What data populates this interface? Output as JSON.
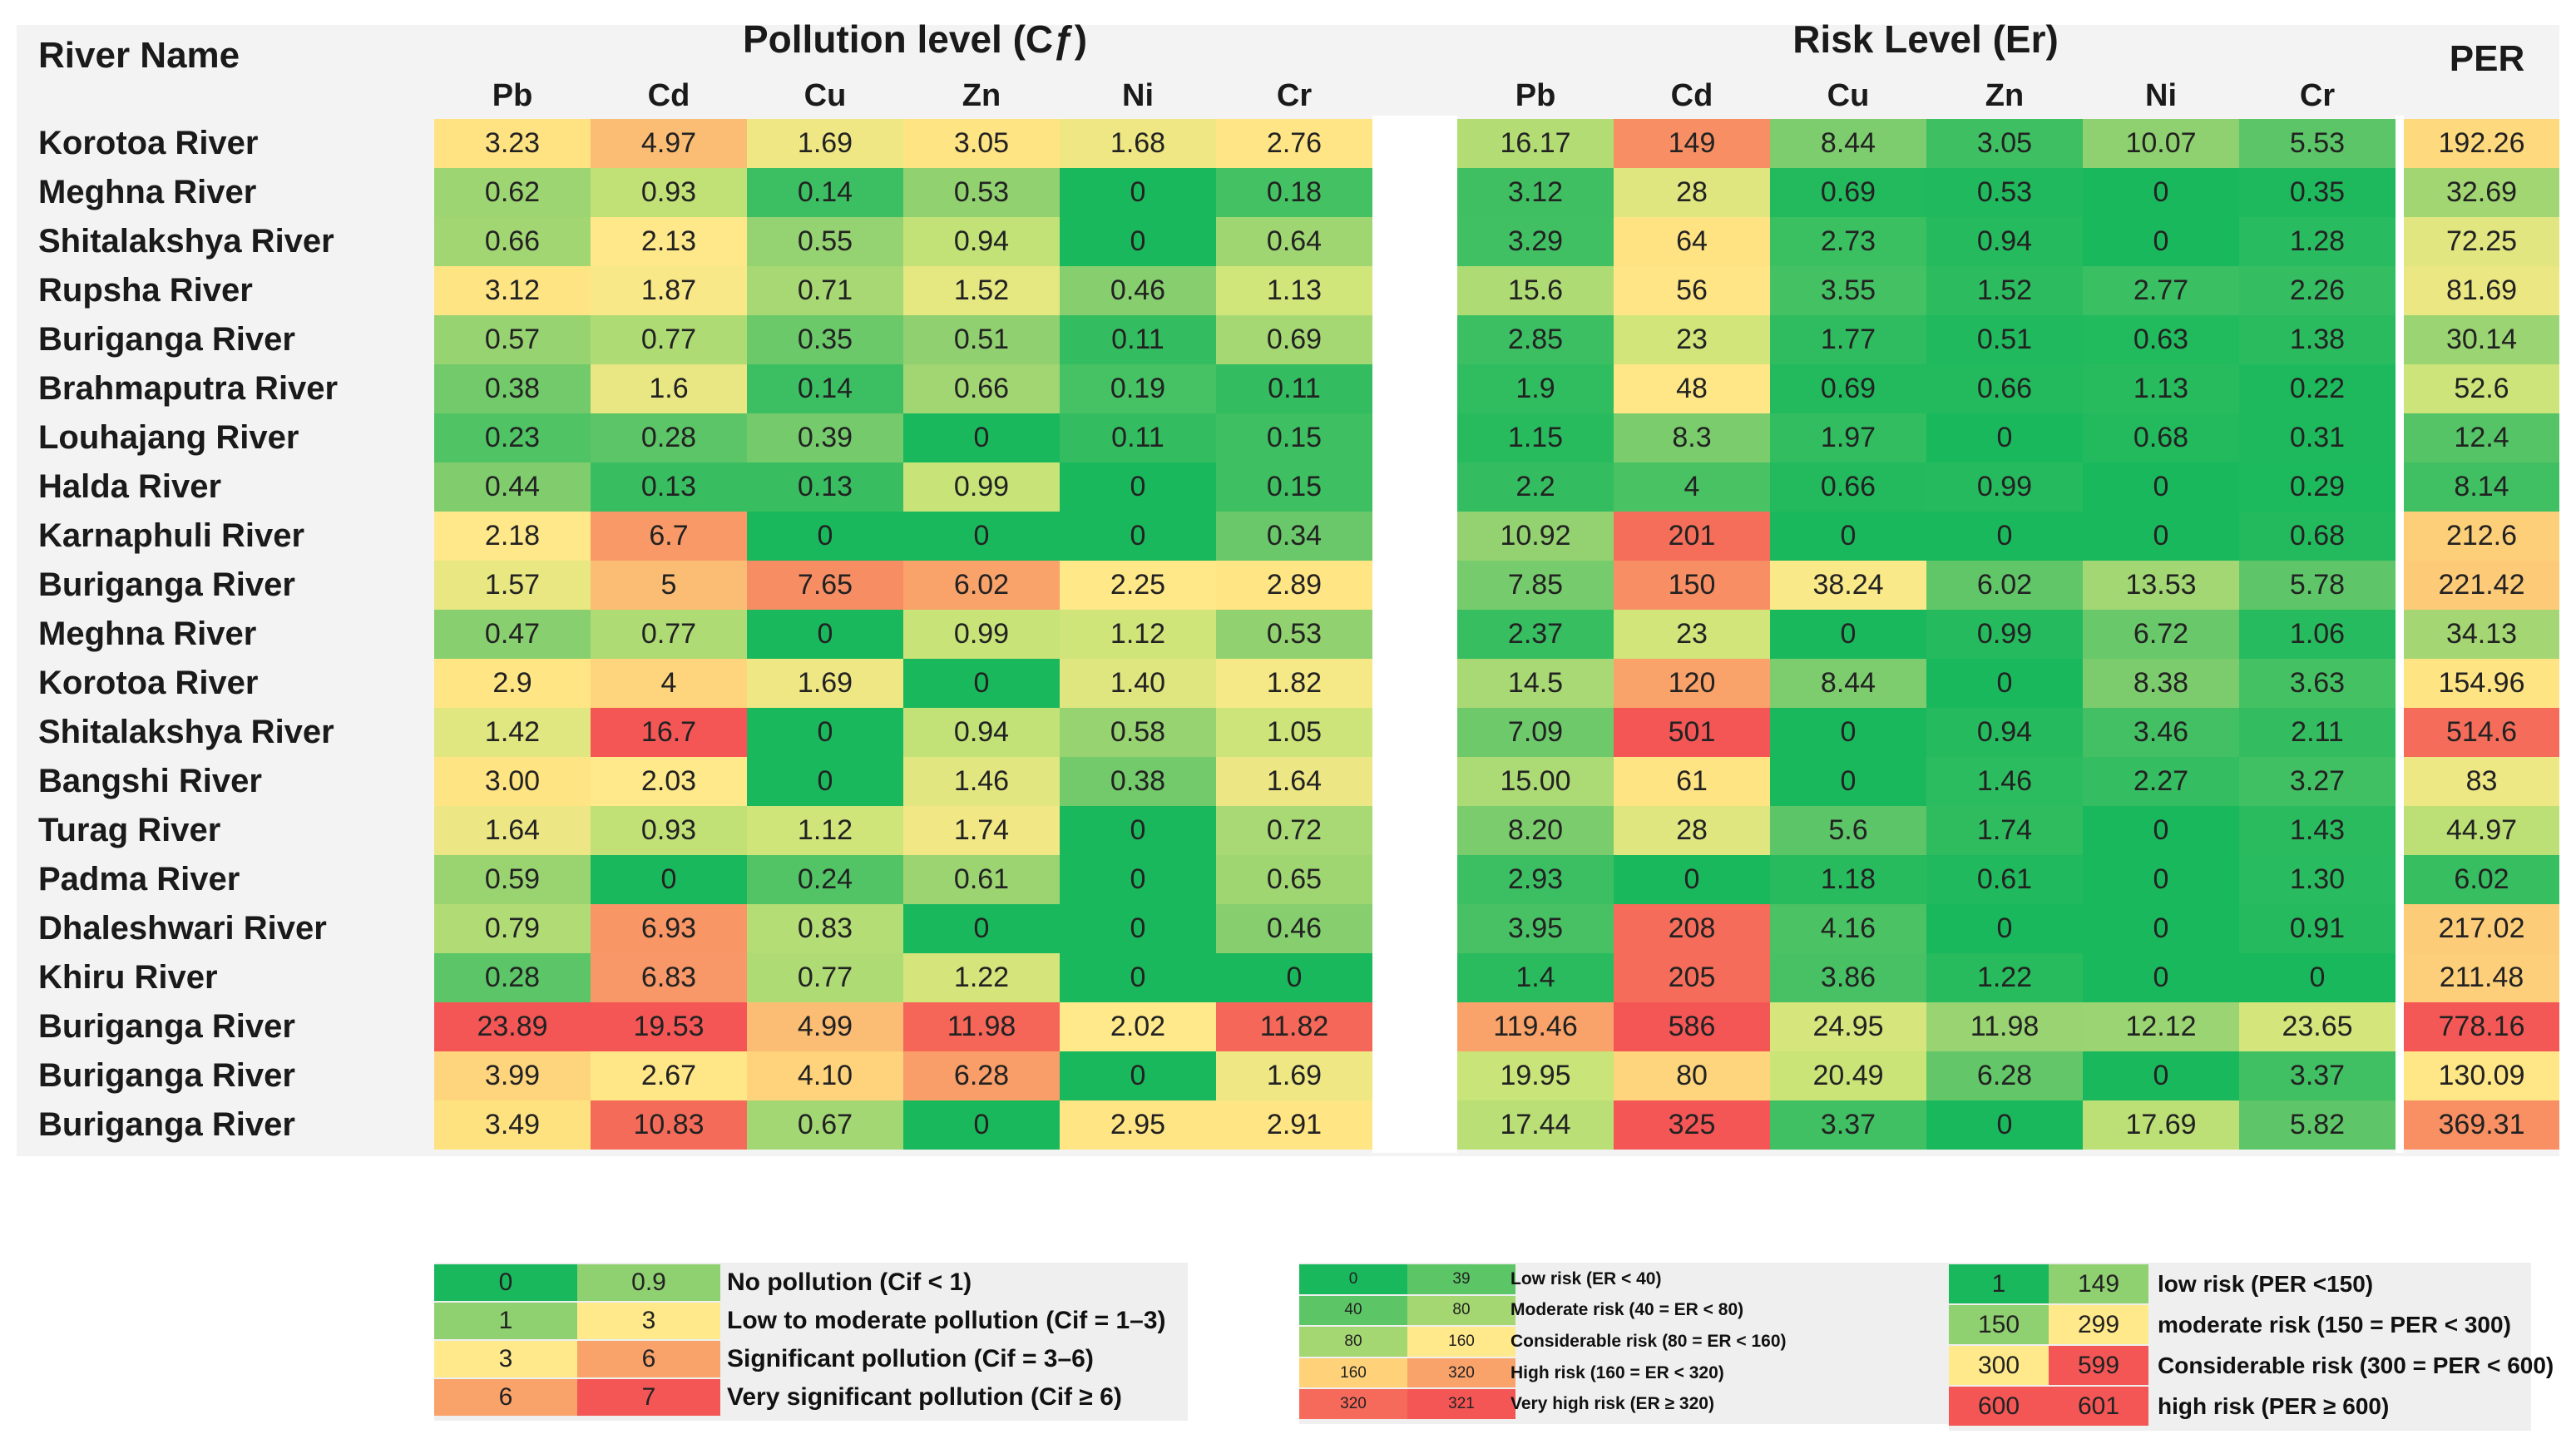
{
  "chart_data": {
    "type": "table",
    "title": "",
    "row_header": "River Name",
    "groups": [
      {
        "name": "Pollution level (Cƒ)",
        "columns": [
          "Pb",
          "Cd",
          "Cu",
          "Zn",
          "Ni",
          "Cr"
        ]
      },
      {
        "name": "Risk Level (Er)",
        "columns": [
          "Pb",
          "Cd",
          "Cu",
          "Zn",
          "Ni",
          "Cr"
        ]
      },
      {
        "name": "PER",
        "columns": [
          "PER"
        ]
      }
    ],
    "rows": [
      {
        "river": "Korotoa River",
        "cf": [
          "3.23",
          "4.97",
          "1.69",
          "3.05",
          "1.68",
          "2.76"
        ],
        "er": [
          "16.17",
          "149",
          "8.44",
          "3.05",
          "10.07",
          "5.53"
        ],
        "per": "192.26"
      },
      {
        "river": "Meghna River",
        "cf": [
          "0.62",
          "0.93",
          "0.14",
          "0.53",
          "0",
          "0.18"
        ],
        "er": [
          "3.12",
          "28",
          "0.69",
          "0.53",
          "0",
          "0.35"
        ],
        "per": "32.69"
      },
      {
        "river": "Shitalakshya River",
        "cf": [
          "0.66",
          "2.13",
          "0.55",
          "0.94",
          "0",
          "0.64"
        ],
        "er": [
          "3.29",
          "64",
          "2.73",
          "0.94",
          "0",
          "1.28"
        ],
        "per": "72.25"
      },
      {
        "river": "Rupsha River",
        "cf": [
          "3.12",
          "1.87",
          "0.71",
          "1.52",
          "0.46",
          "1.13"
        ],
        "er": [
          "15.6",
          "56",
          "3.55",
          "1.52",
          "2.77",
          "2.26"
        ],
        "per": "81.69"
      },
      {
        "river": "Buriganga River",
        "cf": [
          "0.57",
          "0.77",
          "0.35",
          "0.51",
          "0.11",
          "0.69"
        ],
        "er": [
          "2.85",
          "23",
          "1.77",
          "0.51",
          "0.63",
          "1.38"
        ],
        "per": "30.14"
      },
      {
        "river": "Brahmaputra River",
        "cf": [
          "0.38",
          "1.6",
          "0.14",
          "0.66",
          "0.19",
          "0.11"
        ],
        "er": [
          "1.9",
          "48",
          "0.69",
          "0.66",
          "1.13",
          "0.22"
        ],
        "per": "52.6"
      },
      {
        "river": "Louhajang River",
        "cf": [
          "0.23",
          "0.28",
          "0.39",
          "0",
          "0.11",
          "0.15"
        ],
        "er": [
          "1.15",
          "8.3",
          "1.97",
          "0",
          "0.68",
          "0.31"
        ],
        "per": "12.4"
      },
      {
        "river": "Halda River",
        "cf": [
          "0.44",
          "0.13",
          "0.13",
          "0.99",
          "0",
          "0.15"
        ],
        "er": [
          "2.2",
          "4",
          "0.66",
          "0.99",
          "0",
          "0.29"
        ],
        "per": "8.14"
      },
      {
        "river": "Karnaphuli River",
        "cf": [
          "2.18",
          "6.7",
          "0",
          "0",
          "0",
          "0.34"
        ],
        "er": [
          "10.92",
          "201",
          "0",
          "0",
          "0",
          "0.68"
        ],
        "per": "212.6"
      },
      {
        "river": "Buriganga River",
        "cf": [
          "1.57",
          "5",
          "7.65",
          "6.02",
          "2.25",
          "2.89"
        ],
        "er": [
          "7.85",
          "150",
          "38.24",
          "6.02",
          "13.53",
          "5.78"
        ],
        "per": "221.42"
      },
      {
        "river": "Meghna River",
        "cf": [
          "0.47",
          "0.77",
          "0",
          "0.99",
          "1.12",
          "0.53"
        ],
        "er": [
          "2.37",
          "23",
          "0",
          "0.99",
          "6.72",
          "1.06"
        ],
        "per": "34.13"
      },
      {
        "river": "Korotoa River",
        "cf": [
          "2.9",
          "4",
          "1.69",
          "0",
          "1.40",
          "1.82"
        ],
        "er": [
          "14.5",
          "120",
          "8.44",
          "0",
          "8.38",
          "3.63"
        ],
        "per": "154.96"
      },
      {
        "river": "Shitalakshya River",
        "cf": [
          "1.42",
          "16.7",
          "0",
          "0.94",
          "0.58",
          "1.05"
        ],
        "er": [
          "7.09",
          "501",
          "0",
          "0.94",
          "3.46",
          "2.11"
        ],
        "per": "514.6"
      },
      {
        "river": "Bangshi River",
        "cf": [
          "3.00",
          "2.03",
          "0",
          "1.46",
          "0.38",
          "1.64"
        ],
        "er": [
          "15.00",
          "61",
          "0",
          "1.46",
          "2.27",
          "3.27"
        ],
        "per": "83"
      },
      {
        "river": "Turag River",
        "cf": [
          "1.64",
          "0.93",
          "1.12",
          "1.74",
          "0",
          "0.72"
        ],
        "er": [
          "8.20",
          "28",
          "5.6",
          "1.74",
          "0",
          "1.43"
        ],
        "per": "44.97"
      },
      {
        "river": "Padma River",
        "cf": [
          "0.59",
          "0",
          "0.24",
          "0.61",
          "0",
          "0.65"
        ],
        "er": [
          "2.93",
          "0",
          "1.18",
          "0.61",
          "0",
          "1.30"
        ],
        "per": "6.02"
      },
      {
        "river": "Dhaleshwari River",
        "cf": [
          "0.79",
          "6.93",
          "0.83",
          "0",
          "0",
          "0.46"
        ],
        "er": [
          "3.95",
          "208",
          "4.16",
          "0",
          "0",
          "0.91"
        ],
        "per": "217.02"
      },
      {
        "river": "Khiru River",
        "cf": [
          "0.28",
          "6.83",
          "0.77",
          "1.22",
          "0",
          "0"
        ],
        "er": [
          "1.4",
          "205",
          "3.86",
          "1.22",
          "0",
          "0"
        ],
        "per": "211.48"
      },
      {
        "river": "Buriganga River",
        "cf": [
          "23.89",
          "19.53",
          "4.99",
          "11.98",
          "2.02",
          "11.82"
        ],
        "er": [
          "119.46",
          "586",
          "24.95",
          "11.98",
          "12.12",
          "23.65"
        ],
        "per": "778.16"
      },
      {
        "river": "Buriganga River",
        "cf": [
          "3.99",
          "2.67",
          "4.10",
          "6.28",
          "0",
          "1.69"
        ],
        "er": [
          "19.95",
          "80",
          "20.49",
          "6.28",
          "0",
          "3.37"
        ],
        "per": "130.09"
      },
      {
        "river": "Buriganga River",
        "cf": [
          "3.49",
          "10.83",
          "0.67",
          "0",
          "2.95",
          "2.91"
        ],
        "er": [
          "17.44",
          "325",
          "3.37",
          "0",
          "17.69",
          "5.82"
        ],
        "per": "369.31"
      }
    ],
    "legends": [
      {
        "name": "cf",
        "entries": [
          {
            "a": "0",
            "b": "0.9",
            "label": "No pollution (Cif < 1)",
            "ca": "#1ab85c",
            "cb": "#8fd070"
          },
          {
            "a": "1",
            "b": "3",
            "label": "Low to moderate pollution (Cif = 1–3)",
            "ca": "#8fd070",
            "cb": "#ffe98a"
          },
          {
            "a": "3",
            "b": "6",
            "label": "Significant pollution (Cif  = 3–6)",
            "ca": "#ffe98a",
            "cb": "#f9a26a"
          },
          {
            "a": "6",
            "b": "7",
            "label": "Very significant pollution (Cif ≥ 6)",
            "ca": "#f9a26a",
            "cb": "#f45656"
          }
        ]
      },
      {
        "name": "er",
        "entries": [
          {
            "a": "0",
            "b": "39",
            "label": "Low risk (ER < 40)",
            "ca": "#1ab85c",
            "cb": "#5cc667"
          },
          {
            "a": "40",
            "b": "80",
            "label": "Moderate risk (40 = ER < 80)",
            "ca": "#5cc667",
            "cb": "#a4d672"
          },
          {
            "a": "80",
            "b": "160",
            "label": "Considerable risk (80 = ER < 160)",
            "ca": "#a4d672",
            "cb": "#ffe98a"
          },
          {
            "a": "160",
            "b": "320",
            "label": "High risk (160 = ER < 320)",
            "ca": "#ffd27a",
            "cb": "#f9a26a"
          },
          {
            "a": "320",
            "b": "321",
            "label": "Very high risk (ER ≥ 320)",
            "ca": "#f66a5c",
            "cb": "#f45656"
          }
        ]
      },
      {
        "name": "per",
        "entries": [
          {
            "a": "1",
            "b": "149",
            "label": "low risk (PER <150)",
            "ca": "#1ab85c",
            "cb": "#8fd070"
          },
          {
            "a": "150",
            "b": "299",
            "label": "moderate risk (150 = PER < 300)",
            "ca": "#8fd070",
            "cb": "#ffe98a"
          },
          {
            "a": "300",
            "b": "599",
            "label": "Considerable risk (300 = PER < 600)",
            "ca": "#ffe98a",
            "cb": "#f45656"
          },
          {
            "a": "600",
            "b": "601",
            "label": "high risk (PER ≥ 600)",
            "ca": "#f45656",
            "cb": "#f45656"
          }
        ]
      }
    ]
  }
}
